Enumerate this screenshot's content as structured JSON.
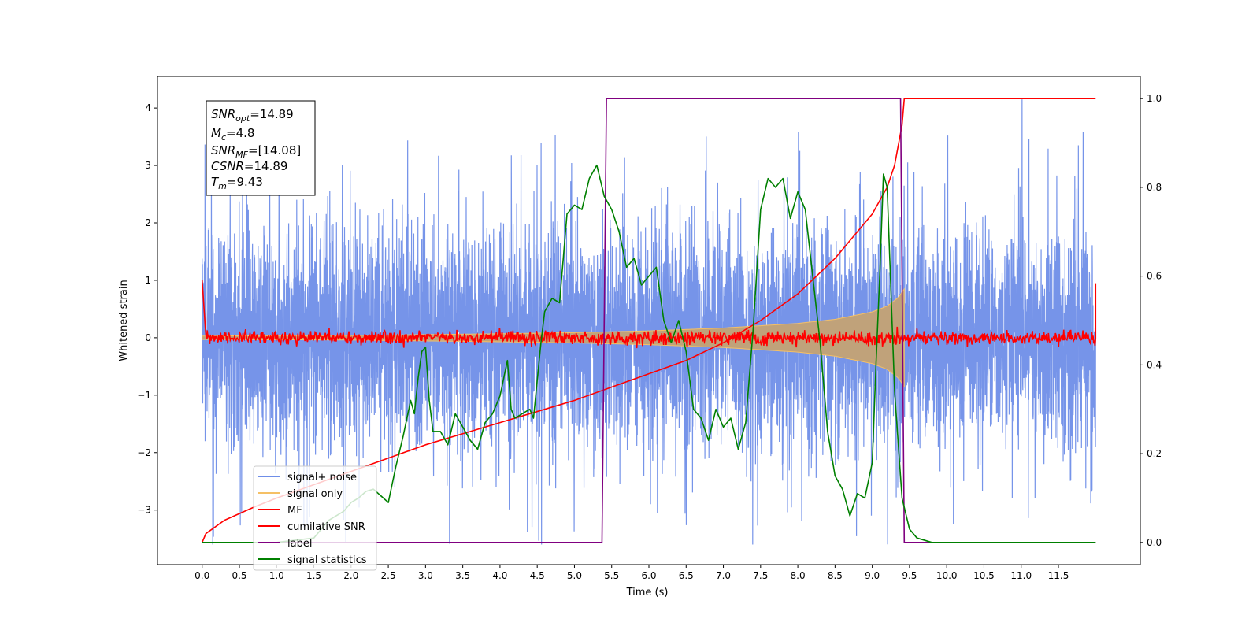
{
  "chart_data": {
    "type": "line",
    "xlabel": "Time (s)",
    "ylabel": "Whitened strain",
    "xlim": [
      -0.6,
      12.6
    ],
    "ylim": [
      -3.95,
      4.55
    ],
    "y2lim": [
      -0.05,
      1.05
    ],
    "x_ticks": [
      0.0,
      0.5,
      1.0,
      1.5,
      2.0,
      2.5,
      3.0,
      3.5,
      4.0,
      4.5,
      5.0,
      5.5,
      6.0,
      6.5,
      7.0,
      7.5,
      8.0,
      8.5,
      9.0,
      9.5,
      10.0,
      10.5,
      11.0,
      11.5
    ],
    "x_tick_labels": [
      "0.0",
      "0.5",
      "1.0",
      "1.5",
      "2.0",
      "2.5",
      "3.0",
      "3.5",
      "4.0",
      "4.5",
      "5.0",
      "5.5",
      "6.0",
      "6.5",
      "7.0",
      "7.5",
      "8.0",
      "8.5",
      "9.0",
      "9.5",
      "10.0",
      "10.5",
      "11.0",
      "11.5"
    ],
    "y_ticks": [
      -3,
      -2,
      -1,
      0,
      1,
      2,
      3,
      4
    ],
    "y_tick_labels": [
      "−3",
      "−2",
      "−1",
      "0",
      "1",
      "2",
      "3",
      "4"
    ],
    "y2_ticks": [
      0.0,
      0.2,
      0.4,
      0.6,
      0.8,
      1.0
    ],
    "y2_tick_labels": [
      "0.0",
      "0.2",
      "0.4",
      "0.6",
      "0.8",
      "1.0"
    ],
    "grid": false,
    "legend_placement": "lower-left",
    "annotation": {
      "lines": [
        {
          "main": "SNR",
          "sub": "opt",
          "value": "=14.89"
        },
        {
          "main": "M",
          "sub": "c",
          "value": "=4.8"
        },
        {
          "main": "SNR",
          "sub": "MF",
          "value": "=[14.08]"
        },
        {
          "main": "CSNR",
          "sub": "",
          "value": "=14.89"
        },
        {
          "main": "T",
          "sub": "m",
          "value": "=9.43"
        }
      ]
    },
    "series": [
      {
        "name": "signal+ noise",
        "axis": "left",
        "color": "#6f8ee8",
        "kind": "noise_band",
        "x_range": [
          0.0,
          12.0
        ],
        "envelope_typical": 1.6,
        "envelope_max": 2.6
      },
      {
        "name": "signal only",
        "axis": "left",
        "color": "#f5c065",
        "kind": "chirp",
        "x_range": [
          0.0,
          9.43
        ],
        "x": [
          0.0,
          2.0,
          4.0,
          5.0,
          6.0,
          7.0,
          8.0,
          8.5,
          9.0,
          9.2,
          9.35,
          9.43
        ],
        "amplitude": [
          0.03,
          0.04,
          0.07,
          0.09,
          0.12,
          0.17,
          0.25,
          0.32,
          0.45,
          0.55,
          0.7,
          0.85
        ]
      },
      {
        "name": "MF",
        "axis": "left",
        "color": "#ff0000",
        "kind": "noise_line",
        "x_range": [
          0.0,
          12.0
        ],
        "amplitude": 0.1,
        "edge_values": [
          1.0,
          0.95
        ]
      },
      {
        "name": "cumilative SNR",
        "axis": "right",
        "color": "#ff0000",
        "kind": "line",
        "x": [
          0.0,
          0.05,
          0.3,
          0.7,
          1.0,
          1.5,
          2.0,
          2.5,
          3.0,
          3.5,
          4.0,
          4.5,
          5.0,
          5.5,
          6.0,
          6.5,
          7.0,
          7.5,
          8.0,
          8.5,
          8.8,
          9.0,
          9.2,
          9.3,
          9.4,
          9.43,
          12.0
        ],
        "y": [
          0.0,
          0.02,
          0.05,
          0.08,
          0.1,
          0.13,
          0.16,
          0.19,
          0.22,
          0.245,
          0.27,
          0.295,
          0.32,
          0.35,
          0.38,
          0.41,
          0.45,
          0.5,
          0.56,
          0.64,
          0.7,
          0.74,
          0.8,
          0.85,
          0.94,
          1.0,
          1.0
        ]
      },
      {
        "name": "label",
        "axis": "right",
        "color": "#800080",
        "kind": "line",
        "x": [
          0.0,
          5.37,
          5.43,
          9.38,
          9.43,
          12.0
        ],
        "y": [
          0.0,
          0.0,
          1.0,
          1.0,
          0.0,
          0.0
        ]
      },
      {
        "name": "signal statistics",
        "axis": "right",
        "color": "#008000",
        "kind": "line",
        "x": [
          0.0,
          1.0,
          1.5,
          1.7,
          1.9,
          2.0,
          2.1,
          2.2,
          2.3,
          2.4,
          2.5,
          2.6,
          2.7,
          2.8,
          2.85,
          2.9,
          2.95,
          3.0,
          3.05,
          3.1,
          3.2,
          3.3,
          3.4,
          3.5,
          3.6,
          3.7,
          3.8,
          3.9,
          4.0,
          4.1,
          4.15,
          4.2,
          4.3,
          4.4,
          4.45,
          4.55,
          4.6,
          4.7,
          4.8,
          4.9,
          5.0,
          5.1,
          5.2,
          5.3,
          5.4,
          5.5,
          5.6,
          5.7,
          5.8,
          5.9,
          6.0,
          6.1,
          6.2,
          6.3,
          6.4,
          6.5,
          6.6,
          6.7,
          6.8,
          6.9,
          7.0,
          7.1,
          7.2,
          7.3,
          7.4,
          7.5,
          7.6,
          7.7,
          7.8,
          7.9,
          8.0,
          8.1,
          8.2,
          8.3,
          8.4,
          8.5,
          8.6,
          8.7,
          8.8,
          8.9,
          9.0,
          9.05,
          9.1,
          9.15,
          9.2,
          9.3,
          9.4,
          9.5,
          9.6,
          9.8,
          10.0,
          12.0
        ],
        "y": [
          0.0,
          0.0,
          0.01,
          0.05,
          0.07,
          0.09,
          0.1,
          0.115,
          0.12,
          0.105,
          0.09,
          0.17,
          0.24,
          0.32,
          0.29,
          0.37,
          0.43,
          0.44,
          0.32,
          0.25,
          0.25,
          0.22,
          0.29,
          0.26,
          0.23,
          0.21,
          0.27,
          0.29,
          0.33,
          0.41,
          0.3,
          0.28,
          0.29,
          0.3,
          0.28,
          0.45,
          0.52,
          0.55,
          0.54,
          0.74,
          0.76,
          0.75,
          0.82,
          0.85,
          0.78,
          0.75,
          0.7,
          0.62,
          0.64,
          0.58,
          0.6,
          0.62,
          0.5,
          0.45,
          0.5,
          0.43,
          0.3,
          0.28,
          0.23,
          0.3,
          0.26,
          0.28,
          0.21,
          0.27,
          0.48,
          0.75,
          0.82,
          0.8,
          0.82,
          0.73,
          0.79,
          0.75,
          0.6,
          0.45,
          0.25,
          0.15,
          0.12,
          0.06,
          0.11,
          0.1,
          0.18,
          0.4,
          0.6,
          0.83,
          0.8,
          0.34,
          0.1,
          0.03,
          0.01,
          0.0,
          0.0,
          0.0
        ]
      }
    ]
  }
}
